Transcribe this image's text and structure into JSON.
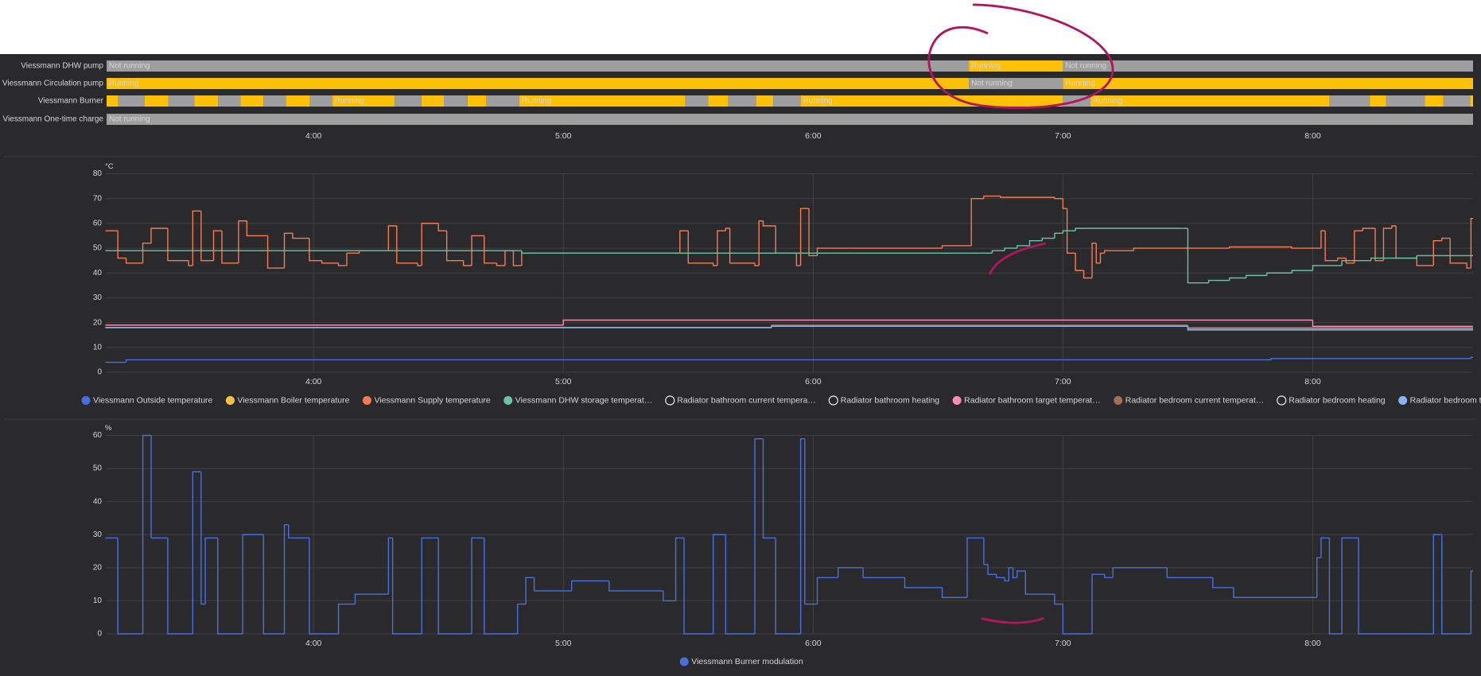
{
  "chart_data": [
    {
      "type": "timeline",
      "xlim": [
        190.3,
        518.5
      ],
      "xticks": [
        {
          "value": 240,
          "label": "4:00"
        },
        {
          "value": 300,
          "label": "5:00"
        },
        {
          "value": 360,
          "label": "6:00"
        },
        {
          "value": 420,
          "label": "7:00"
        },
        {
          "value": 480,
          "label": "8:00"
        }
      ],
      "rows": [
        {
          "label": "Viessmann DHW pump",
          "segments": [
            {
              "start": 190.3,
              "end": 397.4,
              "color": "#9e9e9e",
              "label": "Not running"
            },
            {
              "start": 397.4,
              "end": 420.0,
              "color": "#ffc107",
              "label": "Running"
            },
            {
              "start": 420.0,
              "end": 518.5,
              "color": "#9e9e9e",
              "label": "Not running"
            }
          ]
        },
        {
          "label": "Viessmann Circulation pump",
          "segments": [
            {
              "start": 190.3,
              "end": 397.4,
              "color": "#ffc107",
              "label": "Running"
            },
            {
              "start": 397.4,
              "end": 420.0,
              "color": "#9e9e9e",
              "label": "Not running"
            },
            {
              "start": 420.0,
              "end": 518.5,
              "color": "#ffc107",
              "label": "Running"
            }
          ]
        },
        {
          "label": "Viessmann Burner",
          "segments": [
            {
              "start": 190.3,
              "end": 193.1,
              "color": "#ffc107"
            },
            {
              "start": 193.1,
              "end": 199.4,
              "color": "#9e9e9e"
            },
            {
              "start": 199.4,
              "end": 205.1,
              "color": "#ffc107"
            },
            {
              "start": 205.1,
              "end": 211.4,
              "color": "#9e9e9e"
            },
            {
              "start": 211.4,
              "end": 217.1,
              "color": "#ffc107"
            },
            {
              "start": 217.1,
              "end": 222.5,
              "color": "#9e9e9e"
            },
            {
              "start": 222.5,
              "end": 228.0,
              "color": "#ffc107"
            },
            {
              "start": 228.0,
              "end": 233.4,
              "color": "#9e9e9e"
            },
            {
              "start": 233.4,
              "end": 239.1,
              "color": "#ffc107"
            },
            {
              "start": 239.1,
              "end": 244.5,
              "color": "#9e9e9e"
            },
            {
              "start": 244.5,
              "end": 259.5,
              "color": "#ffc107",
              "label": "Running"
            },
            {
              "start": 259.5,
              "end": 265.9,
              "color": "#9e9e9e"
            },
            {
              "start": 265.9,
              "end": 271.3,
              "color": "#ffc107"
            },
            {
              "start": 271.3,
              "end": 277.0,
              "color": "#9e9e9e"
            },
            {
              "start": 277.0,
              "end": 281.5,
              "color": "#ffc107"
            },
            {
              "start": 281.5,
              "end": 289.4,
              "color": "#9e9e9e"
            },
            {
              "start": 289.4,
              "end": 329.3,
              "color": "#ffc107",
              "label": "Running"
            },
            {
              "start": 329.3,
              "end": 334.8,
              "color": "#9e9e9e"
            },
            {
              "start": 334.8,
              "end": 339.5,
              "color": "#ffc107"
            },
            {
              "start": 339.5,
              "end": 346.3,
              "color": "#9e9e9e"
            },
            {
              "start": 346.3,
              "end": 350.4,
              "color": "#ffc107"
            },
            {
              "start": 350.4,
              "end": 357.0,
              "color": "#9e9e9e"
            },
            {
              "start": 357.0,
              "end": 420.0,
              "color": "#ffc107",
              "label": "Running"
            },
            {
              "start": 420.0,
              "end": 426.6,
              "color": "#9e9e9e"
            },
            {
              "start": 426.6,
              "end": 484.0,
              "color": "#ffc107",
              "label": "Running"
            },
            {
              "start": 484.0,
              "end": 493.7,
              "color": "#9e9e9e"
            },
            {
              "start": 493.7,
              "end": 497.6,
              "color": "#ffc107"
            },
            {
              "start": 497.6,
              "end": 506.9,
              "color": "#9e9e9e"
            },
            {
              "start": 506.9,
              "end": 511.4,
              "color": "#ffc107"
            },
            {
              "start": 511.4,
              "end": 517.8,
              "color": "#9e9e9e"
            },
            {
              "start": 517.8,
              "end": 518.5,
              "color": "#ffc107"
            }
          ]
        },
        {
          "label": "Viessmann One-time charge",
          "segments": [
            {
              "start": 190.3,
              "end": 518.5,
              "color": "#9e9e9e",
              "label": "Not running"
            }
          ]
        }
      ]
    },
    {
      "type": "line",
      "unit": "°C",
      "xlim": [
        190.3,
        518.5
      ],
      "xticks": [
        {
          "value": 240,
          "label": "4:00"
        },
        {
          "value": 300,
          "label": "5:00"
        },
        {
          "value": 360,
          "label": "6:00"
        },
        {
          "value": 420,
          "label": "7:00"
        },
        {
          "value": 480,
          "label": "8:00"
        }
      ],
      "ylim": [
        0,
        80
      ],
      "yticks": [
        0,
        10,
        20,
        30,
        40,
        50,
        60,
        70,
        80
      ],
      "grid": true,
      "series": [
        {
          "name": "Viessmann Outside temperature",
          "color": "#4a6fdc",
          "x": [
            190,
            195,
            420,
            470,
            518
          ],
          "values": [
            4,
            5,
            5,
            5.5,
            6
          ]
        },
        {
          "name": "Viessmann Boiler temperature",
          "color": "#f6c344"
        },
        {
          "name": "Viessmann Supply temperature",
          "color": "#f47c55",
          "x": [
            190,
            193,
            195,
            199,
            201,
            205,
            210,
            211,
            213,
            216,
            218,
            222,
            224,
            229,
            233,
            235,
            239,
            242,
            246,
            248,
            251,
            258,
            260,
            265,
            266,
            270,
            272,
            276,
            278,
            281,
            284,
            286,
            288,
            290,
            292,
            326,
            328,
            330,
            336,
            337,
            339,
            340,
            346,
            347,
            348,
            351,
            356,
            357,
            359,
            361,
            369,
            391,
            398,
            401,
            405,
            418,
            420,
            421,
            423,
            425,
            427,
            428,
            429,
            430,
            437,
            460,
            475,
            482,
            483,
            486,
            488,
            490,
            492,
            495,
            497,
            499,
            500,
            505,
            509,
            511,
            513,
            517,
            518
          ],
          "values": [
            57,
            46,
            44,
            52,
            58,
            45,
            43,
            65,
            45,
            57,
            44,
            61,
            55,
            42,
            56,
            54,
            45,
            44,
            43,
            48,
            49,
            59,
            44,
            43,
            60,
            57,
            45,
            43,
            55,
            44,
            43,
            49,
            43,
            48,
            48,
            48,
            57,
            44,
            43,
            57,
            58,
            44,
            43,
            61,
            59,
            48,
            43,
            66,
            47,
            50,
            50,
            51,
            70,
            71,
            70.5,
            70,
            66,
            48,
            41,
            38,
            52,
            44,
            48,
            49,
            50,
            50.5,
            50,
            57,
            45,
            46,
            44,
            57,
            58,
            45,
            58,
            59,
            46,
            43,
            53,
            54,
            44,
            42,
            62
          ]
        },
        {
          "name": "Viessmann DHW storage temperat…",
          "color": "#6cc3a3",
          "x": [
            190,
            290,
            400,
            403,
            406,
            409,
            412,
            415,
            418,
            420,
            423,
            448,
            450,
            455,
            460,
            464,
            469,
            475,
            480,
            487,
            494,
            505
          ],
          "values": [
            49,
            48,
            48,
            49,
            50,
            51,
            53,
            54,
            56,
            57,
            58,
            58,
            36,
            37,
            38,
            39,
            40,
            41,
            43,
            45,
            46,
            47
          ]
        },
        {
          "name": "Radiator bathroom current tempera…",
          "color": "#e8e8e8",
          "marker": "outline",
          "x": [
            190,
            350,
            450
          ],
          "values": [
            18,
            18.5,
            17.5
          ]
        },
        {
          "name": "Radiator bathroom heating",
          "color": "#e8e8e8",
          "marker": "outline"
        },
        {
          "name": "Radiator bathroom target temperat…",
          "color": "#f48fb1",
          "x": [
            190,
            300,
            480
          ],
          "values": [
            19,
            21,
            18.5
          ]
        },
        {
          "name": "Radiator bedroom current temperat…",
          "color": "#a0705a",
          "x": [
            190,
            350,
            450
          ],
          "values": [
            18,
            19,
            18
          ]
        },
        {
          "name": "Radiator bedroom heating",
          "color": "#e8e8e8",
          "marker": "outline"
        },
        {
          "name": "Radiator bedroom target temperatu…",
          "color": "#8ab4f8",
          "x": [
            190,
            350,
            450
          ],
          "values": [
            18,
            18.5,
            17
          ]
        }
      ]
    },
    {
      "type": "line",
      "unit": "%",
      "xlim": [
        190.3,
        518.5
      ],
      "xticks": [
        {
          "value": 240,
          "label": "4:00"
        },
        {
          "value": 300,
          "label": "5:00"
        },
        {
          "value": 360,
          "label": "6:00"
        },
        {
          "value": 420,
          "label": "7:00"
        },
        {
          "value": 480,
          "label": "8:00"
        }
      ],
      "ylim": [
        0,
        60
      ],
      "yticks": [
        0,
        10,
        20,
        30,
        40,
        50,
        60
      ],
      "grid": true,
      "series": [
        {
          "name": "Viessmann Burner modulation",
          "color": "#4a6fdc",
          "x": [
            190,
            193,
            199,
            201,
            205,
            211,
            213,
            214,
            217,
            223,
            228,
            233,
            234,
            239,
            246,
            250,
            258,
            259,
            266,
            270,
            278,
            281,
            289,
            291,
            293,
            302,
            311,
            324,
            327,
            329,
            336,
            339,
            346,
            348,
            351,
            357,
            358,
            361,
            366,
            372,
            382,
            391,
            397,
            401,
            402,
            404,
            406,
            407,
            408,
            409,
            411,
            418,
            420,
            427,
            430,
            432,
            445,
            456,
            461,
            481,
            482,
            484,
            487,
            491,
            509,
            511,
            518
          ],
          "values": [
            29,
            0,
            60,
            29,
            0,
            49,
            9,
            29,
            0,
            30,
            0,
            33,
            29,
            0,
            9,
            12,
            29,
            0,
            29,
            0,
            29,
            0,
            9,
            17,
            13,
            16,
            13,
            10,
            29,
            0,
            30,
            0,
            59,
            29,
            0,
            59,
            9,
            17,
            20,
            17,
            14,
            11,
            29,
            21,
            18,
            17,
            16,
            20,
            17,
            19,
            12,
            9,
            0,
            18,
            17,
            20,
            17,
            14,
            11,
            23,
            29,
            0,
            29,
            0,
            30,
            0,
            19
          ]
        }
      ]
    }
  ]
}
